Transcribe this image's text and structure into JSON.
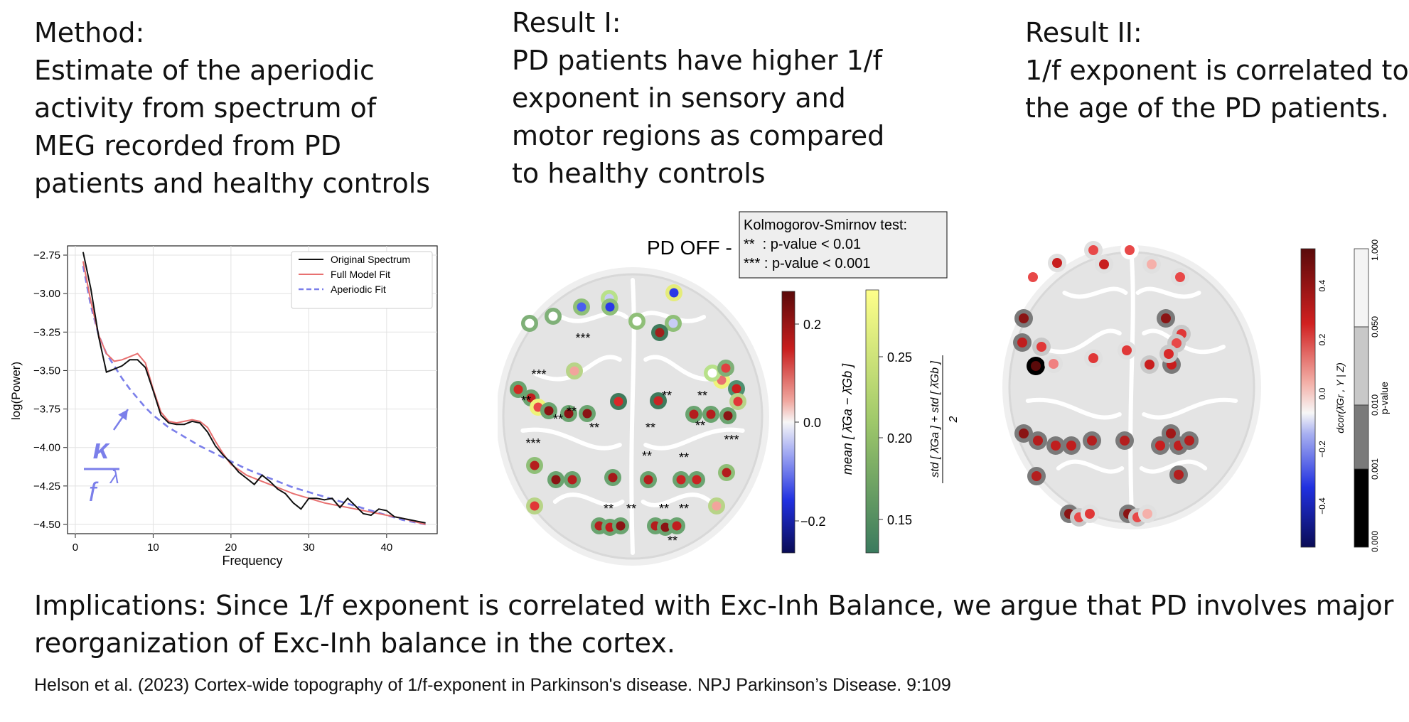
{
  "method": {
    "lines": [
      "Method:",
      "Estimate of the aperiodic",
      "activity from spectrum of",
      "MEG recorded from PD",
      "patients and healthy controls"
    ]
  },
  "result1": {
    "lines": [
      "Result I:",
      "PD patients have higher 1/f",
      "exponent in sensory and",
      "motor regions as compared",
      "to healthy controls"
    ]
  },
  "result2": {
    "lines": [
      "Result II:",
      "1/f exponent is correlated to",
      "the age of the PD patients."
    ]
  },
  "implications": {
    "lines": [
      "Implications: Since 1/f exponent is correlated with Exc-Inh Balance, we argue that PD involves major",
      "reorganization of Exc-Inh balance in the cortex."
    ]
  },
  "citation": "Helson et al. (2023) Cortex-wide topography of 1/f-exponent in Parkinson's disease. NPJ Parkinson’s Disease. 9:109",
  "chart_data": {
    "type": "line",
    "xlabel": "Frequency",
    "ylabel": "log(Power)",
    "xlim": [
      -1,
      46.5
    ],
    "ylim": [
      -4.56,
      -2.69
    ],
    "xticks": [
      0,
      10,
      20,
      30,
      40
    ],
    "yticks": [
      -2.75,
      -3.0,
      -3.25,
      -3.5,
      -3.75,
      -4.0,
      -4.25,
      -4.5
    ],
    "grid": true,
    "legend_position": "top-right",
    "annotation": {
      "kappa": "κ",
      "f": "f",
      "lambda": "λ",
      "x": 8,
      "y": -3.7
    },
    "series": [
      {
        "name": "Original Spectrum",
        "color": "#111111",
        "style": "solid",
        "x": [
          1,
          2,
          3,
          4,
          5,
          6,
          7,
          8,
          9,
          10,
          11,
          12,
          13,
          14,
          15,
          16,
          17,
          18,
          19,
          20,
          21,
          22,
          23,
          24,
          25,
          26,
          27,
          28,
          29,
          30,
          31,
          32,
          33,
          34,
          35,
          36,
          37,
          38,
          39,
          40,
          41,
          42,
          43,
          44,
          45
        ],
        "y": [
          -2.73,
          -2.97,
          -3.28,
          -3.51,
          -3.49,
          -3.47,
          -3.43,
          -3.43,
          -3.48,
          -3.63,
          -3.79,
          -3.84,
          -3.85,
          -3.85,
          -3.83,
          -3.84,
          -3.9,
          -3.99,
          -4.05,
          -4.1,
          -4.16,
          -4.2,
          -4.24,
          -4.18,
          -4.22,
          -4.27,
          -4.3,
          -4.36,
          -4.4,
          -4.33,
          -4.33,
          -4.34,
          -4.33,
          -4.39,
          -4.33,
          -4.38,
          -4.43,
          -4.44,
          -4.4,
          -4.41,
          -4.45,
          -4.46,
          -4.47,
          -4.48,
          -4.49
        ]
      },
      {
        "name": "Full Model Fit",
        "color": "#e87070",
        "style": "solid",
        "x": [
          1,
          2,
          3,
          4,
          5,
          6,
          7,
          8,
          9,
          10,
          11,
          12,
          13,
          14,
          15,
          16,
          17,
          18,
          19,
          20,
          22,
          24,
          26,
          28,
          30,
          32,
          34,
          36,
          38,
          40,
          42,
          45
        ],
        "y": [
          -2.79,
          -3.05,
          -3.27,
          -3.39,
          -3.44,
          -3.43,
          -3.41,
          -3.39,
          -3.45,
          -3.62,
          -3.77,
          -3.83,
          -3.84,
          -3.83,
          -3.82,
          -3.83,
          -3.87,
          -3.96,
          -4.04,
          -4.11,
          -4.18,
          -4.22,
          -4.26,
          -4.3,
          -4.33,
          -4.36,
          -4.38,
          -4.4,
          -4.42,
          -4.44,
          -4.46,
          -4.5
        ]
      },
      {
        "name": "Aperiodic Fit",
        "color": "#7b7fea",
        "style": "dashed",
        "x": [
          1,
          2,
          3,
          4,
          5,
          6,
          7,
          8,
          9,
          10,
          12,
          14,
          16,
          18,
          20,
          22,
          24,
          26,
          28,
          30,
          32,
          34,
          36,
          38,
          40,
          42,
          45
        ],
        "y": [
          -2.82,
          -3.08,
          -3.27,
          -3.39,
          -3.47,
          -3.55,
          -3.62,
          -3.68,
          -3.74,
          -3.79,
          -3.87,
          -3.93,
          -3.99,
          -4.04,
          -4.09,
          -4.14,
          -4.18,
          -4.22,
          -4.26,
          -4.29,
          -4.32,
          -4.35,
          -4.38,
          -4.41,
          -4.44,
          -4.47,
          -4.5
        ]
      }
    ]
  },
  "brain1": {
    "title": "PD OFF - HC",
    "ks_test": {
      "title": "Kolmogorov-Smirnov test:",
      "line1": "**  : p-value < 0.01",
      "line2": "*** : p-value < 0.001"
    },
    "colorbar_mean": {
      "ticks": [
        "0.2",
        "0.0",
        "−0.2"
      ],
      "label": "mean [ λ̄Ga − λ̄Gb ]"
    },
    "colorbar_std": {
      "ticks": [
        "0.25",
        "0.20",
        "0.15"
      ],
      "label": "std [ λ̄Ga ] + std [ λ̄Gb ]",
      "label_denominator": "2"
    },
    "stars": [
      "***",
      "**",
      "**",
      "**",
      "**",
      "**",
      "**",
      "**",
      "***",
      "***",
      "**",
      "***",
      "**",
      "**",
      "**",
      "**",
      "**",
      "**",
      "**"
    ]
  },
  "brain2": {
    "colorbar_dcor": {
      "ticks": [
        "0.4",
        "0.2",
        "0.0",
        "−0.2",
        "−0.4"
      ],
      "label": "dcor(λ̄Gr , Y | Z)"
    },
    "colorbar_p": {
      "ticks": [
        "1.000",
        "0.050",
        "0.010",
        "0.001",
        "0.000"
      ],
      "label": "p-value"
    }
  }
}
